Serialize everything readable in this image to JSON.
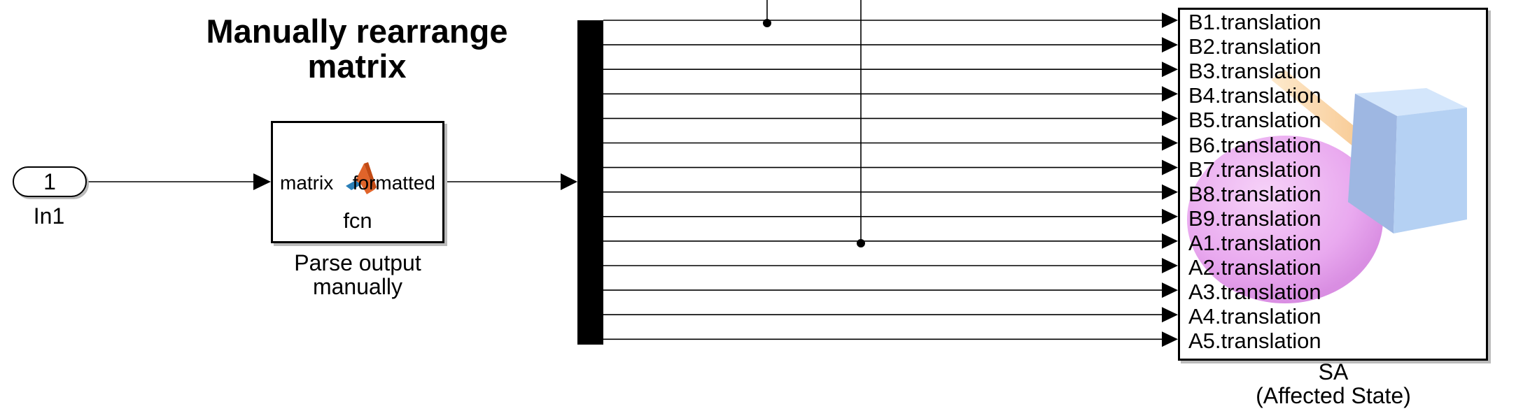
{
  "title": "Manually rearrange\nmatrix",
  "inport": {
    "number": "1",
    "name": "In1"
  },
  "function_block": {
    "input_port": "matrix",
    "output_port": "formatted",
    "name": "fcn",
    "caption_line1": "Parse output",
    "caption_line2": "manually"
  },
  "subsystem": {
    "name": "SA",
    "subtitle": "(Affected State)",
    "ports": [
      "B1.translation",
      "B2.translation",
      "B3.translation",
      "B4.translation",
      "B5.translation",
      "B6.translation",
      "B7.translation",
      "B8.translation",
      "B9.translation",
      "A1.translation",
      "A2.translation",
      "A3.translation",
      "A4.translation",
      "A5.translation"
    ]
  },
  "colors": {
    "line": "#000000",
    "sphere": "#e9a9ef",
    "cube": "#a8c8f0",
    "arm": "#f7c98a"
  }
}
